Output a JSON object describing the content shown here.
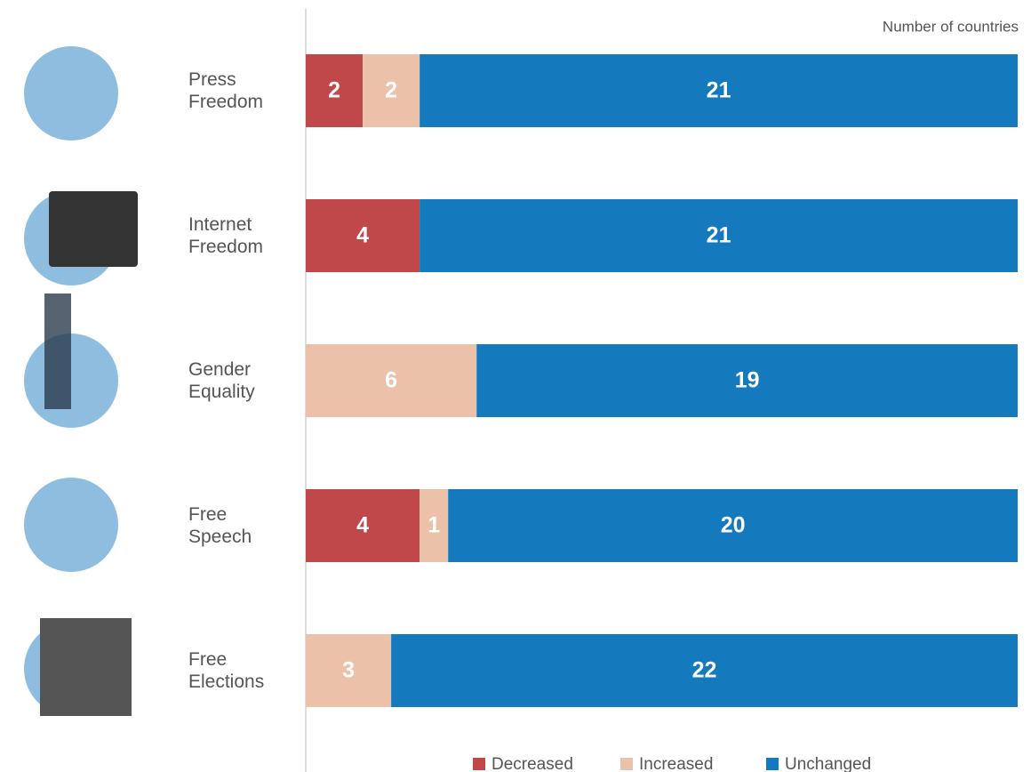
{
  "chart_data": {
    "type": "stacked-bar-horizontal",
    "x_label": "Number of countries",
    "categories": [
      "Press Freedom",
      "Internet Freedom",
      "Gender Equality",
      "Free Speech",
      "Free Elections"
    ],
    "series": [
      {
        "name": "Decreased",
        "color": "#c0474a",
        "values": [
          2,
          4,
          0,
          4,
          0
        ]
      },
      {
        "name": "Increased",
        "color": "#ecc1a9",
        "values": [
          2,
          0,
          6,
          1,
          3
        ]
      },
      {
        "name": "Unchanged",
        "color": "#1479bd",
        "values": [
          21,
          21,
          19,
          20,
          22
        ]
      }
    ],
    "xlim": [
      0,
      25
    ]
  }
}
